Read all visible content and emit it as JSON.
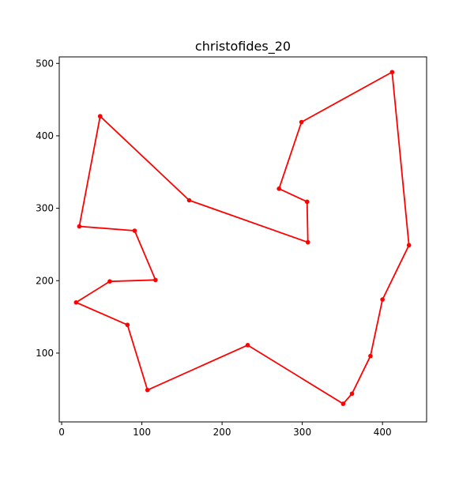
{
  "chart_data": {
    "type": "line",
    "title": "christofides_20",
    "xlabel": "",
    "ylabel": "",
    "xlim": [
      -3,
      455
    ],
    "ylim": [
      5,
      509
    ],
    "x_ticks": [
      0,
      100,
      200,
      300,
      400
    ],
    "y_ticks": [
      100,
      200,
      300,
      400,
      500
    ],
    "grid": false,
    "legend": "none",
    "series": [
      {
        "color": "#ff0000",
        "marker": "circle",
        "points": [
          [
            48,
            427
          ],
          [
            159,
            311
          ],
          [
            307,
            253
          ],
          [
            306,
            309
          ],
          [
            271,
            327
          ],
          [
            299,
            419
          ],
          [
            412,
            488
          ],
          [
            433,
            249
          ],
          [
            400,
            174
          ],
          [
            385,
            96
          ],
          [
            362,
            44
          ],
          [
            351,
            30
          ],
          [
            232,
            111
          ],
          [
            107,
            49
          ],
          [
            82,
            139
          ],
          [
            18,
            170
          ],
          [
            60,
            199
          ],
          [
            117,
            201
          ],
          [
            91,
            269
          ],
          [
            22,
            275
          ],
          [
            48,
            427
          ]
        ]
      }
    ]
  }
}
